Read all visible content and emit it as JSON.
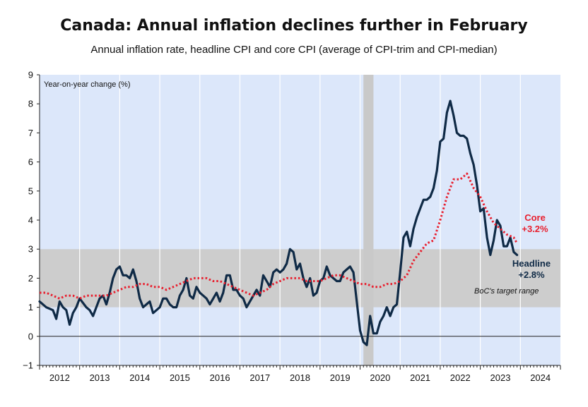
{
  "title": "Canada: Annual inflation declines further in February",
  "subtitle": "Annual inflation rate, headline CPI and core CPI (average of CPI-trim and CPI-median)",
  "chart_data": {
    "type": "line",
    "ylabel": "Year-on-year change (%)",
    "ylim": [
      -1,
      9
    ],
    "yticks": [
      -1,
      0,
      1,
      2,
      3,
      4,
      5,
      6,
      7,
      8,
      9
    ],
    "xlim": [
      "2012-01",
      "2024-12"
    ],
    "xticks": [
      "2012",
      "2013",
      "2014",
      "2015",
      "2016",
      "2017",
      "2018",
      "2019",
      "2020",
      "2021",
      "2022",
      "2023",
      "2024"
    ],
    "target_range": {
      "low": 1,
      "high": 3,
      "label": "BoC's target range"
    },
    "recession_shading": {
      "start": "2020-02",
      "end": "2020-04"
    },
    "series": [
      {
        "name": "Headline",
        "style": "solid",
        "color": "#0f2a46",
        "end_label": "+2.8%",
        "points": [
          [
            "2012-01",
            1.2
          ],
          [
            "2012-03",
            1.0
          ],
          [
            "2012-05",
            0.9
          ],
          [
            "2012-06",
            0.6
          ],
          [
            "2012-07",
            1.2
          ],
          [
            "2012-08",
            1.0
          ],
          [
            "2012-09",
            0.9
          ],
          [
            "2012-10",
            0.4
          ],
          [
            "2012-11",
            0.8
          ],
          [
            "2012-12",
            1.0
          ],
          [
            "2013-01",
            1.3
          ],
          [
            "2013-03",
            1.0
          ],
          [
            "2013-04",
            0.9
          ],
          [
            "2013-05",
            0.7
          ],
          [
            "2013-06",
            1.0
          ],
          [
            "2013-07",
            1.3
          ],
          [
            "2013-08",
            1.4
          ],
          [
            "2013-09",
            1.1
          ],
          [
            "2013-10",
            1.5
          ],
          [
            "2013-11",
            2.0
          ],
          [
            "2013-12",
            2.3
          ],
          [
            "2014-01",
            2.4
          ],
          [
            "2014-02",
            2.1
          ],
          [
            "2014-03",
            2.1
          ],
          [
            "2014-04",
            2.0
          ],
          [
            "2014-05",
            2.3
          ],
          [
            "2014-06",
            1.9
          ],
          [
            "2014-07",
            1.3
          ],
          [
            "2014-08",
            1.0
          ],
          [
            "2014-09",
            1.1
          ],
          [
            "2014-10",
            1.2
          ],
          [
            "2014-11",
            0.8
          ],
          [
            "2014-12",
            0.9
          ],
          [
            "2015-01",
            1.0
          ],
          [
            "2015-02",
            1.3
          ],
          [
            "2015-03",
            1.3
          ],
          [
            "2015-04",
            1.1
          ],
          [
            "2015-05",
            1.0
          ],
          [
            "2015-06",
            1.0
          ],
          [
            "2015-07",
            1.4
          ],
          [
            "2015-08",
            1.6
          ],
          [
            "2015-09",
            2.0
          ],
          [
            "2015-10",
            1.4
          ],
          [
            "2015-11",
            1.3
          ],
          [
            "2015-12",
            1.7
          ],
          [
            "2016-01",
            1.5
          ],
          [
            "2016-02",
            1.4
          ],
          [
            "2016-03",
            1.3
          ],
          [
            "2016-04",
            1.1
          ],
          [
            "2016-05",
            1.3
          ],
          [
            "2016-06",
            1.5
          ],
          [
            "2016-07",
            1.2
          ],
          [
            "2016-08",
            1.5
          ],
          [
            "2016-09",
            2.1
          ],
          [
            "2016-10",
            2.1
          ],
          [
            "2016-11",
            1.6
          ],
          [
            "2016-12",
            1.6
          ],
          [
            "2017-01",
            1.4
          ],
          [
            "2017-02",
            1.3
          ],
          [
            "2017-03",
            1.0
          ],
          [
            "2017-04",
            1.2
          ],
          [
            "2017-05",
            1.4
          ],
          [
            "2017-06",
            1.6
          ],
          [
            "2017-07",
            1.4
          ],
          [
            "2017-08",
            2.1
          ],
          [
            "2017-09",
            1.9
          ],
          [
            "2017-10",
            1.7
          ],
          [
            "2017-11",
            2.2
          ],
          [
            "2017-12",
            2.3
          ],
          [
            "2018-01",
            2.2
          ],
          [
            "2018-02",
            2.3
          ],
          [
            "2018-03",
            2.5
          ],
          [
            "2018-04",
            3.0
          ],
          [
            "2018-05",
            2.9
          ],
          [
            "2018-06",
            2.3
          ],
          [
            "2018-07",
            2.5
          ],
          [
            "2018-08",
            2.0
          ],
          [
            "2018-09",
            1.7
          ],
          [
            "2018-10",
            2.0
          ],
          [
            "2018-11",
            1.4
          ],
          [
            "2018-12",
            1.5
          ],
          [
            "2019-01",
            1.9
          ],
          [
            "2019-02",
            2.0
          ],
          [
            "2019-03",
            2.4
          ],
          [
            "2019-04",
            2.1
          ],
          [
            "2019-05",
            2.0
          ],
          [
            "2019-06",
            1.9
          ],
          [
            "2019-07",
            1.9
          ],
          [
            "2019-08",
            2.2
          ],
          [
            "2019-09",
            2.3
          ],
          [
            "2019-10",
            2.4
          ],
          [
            "2019-11",
            2.2
          ],
          [
            "2019-12",
            1.2
          ],
          [
            "2020-01",
            0.2
          ],
          [
            "2020-02",
            -0.2
          ],
          [
            "2020-03",
            -0.3
          ],
          [
            "2020-04",
            0.7
          ],
          [
            "2020-05",
            0.1
          ],
          [
            "2020-06",
            0.1
          ],
          [
            "2020-07",
            0.5
          ],
          [
            "2020-08",
            0.7
          ],
          [
            "2020-09",
            1.0
          ],
          [
            "2020-10",
            0.7
          ],
          [
            "2020-11",
            1.0
          ],
          [
            "2020-12",
            1.1
          ],
          [
            "2021-01",
            2.2
          ],
          [
            "2021-02",
            3.4
          ],
          [
            "2021-03",
            3.6
          ],
          [
            "2021-04",
            3.1
          ],
          [
            "2021-05",
            3.7
          ],
          [
            "2021-06",
            4.1
          ],
          [
            "2021-07",
            4.4
          ],
          [
            "2021-08",
            4.7
          ],
          [
            "2021-09",
            4.7
          ],
          [
            "2021-10",
            4.8
          ],
          [
            "2021-11",
            5.1
          ],
          [
            "2021-12",
            5.7
          ],
          [
            "2022-01",
            6.7
          ],
          [
            "2022-02",
            6.8
          ],
          [
            "2022-03",
            7.7
          ],
          [
            "2022-04",
            8.1
          ],
          [
            "2022-05",
            7.6
          ],
          [
            "2022-06",
            7.0
          ],
          [
            "2022-07",
            6.9
          ],
          [
            "2022-08",
            6.9
          ],
          [
            "2022-09",
            6.8
          ],
          [
            "2022-10",
            6.3
          ],
          [
            "2022-11",
            5.9
          ],
          [
            "2022-12",
            5.2
          ],
          [
            "2023-01",
            4.3
          ],
          [
            "2023-02",
            4.4
          ],
          [
            "2023-03",
            3.4
          ],
          [
            "2023-04",
            2.8
          ],
          [
            "2023-05",
            3.3
          ],
          [
            "2023-06",
            4.0
          ],
          [
            "2023-07",
            3.8
          ],
          [
            "2023-08",
            3.1
          ],
          [
            "2023-09",
            3.1
          ],
          [
            "2023-10",
            3.4
          ],
          [
            "2023-11",
            2.9
          ],
          [
            "2023-12",
            2.8
          ]
        ]
      },
      {
        "name": "Core",
        "style": "dotted",
        "color": "#e8202f",
        "end_label": "+3.2%",
        "points": [
          [
            "2012-01",
            1.5
          ],
          [
            "2012-03",
            1.5
          ],
          [
            "2012-05",
            1.4
          ],
          [
            "2012-07",
            1.3
          ],
          [
            "2012-09",
            1.4
          ],
          [
            "2012-11",
            1.4
          ],
          [
            "2013-01",
            1.3
          ],
          [
            "2013-03",
            1.4
          ],
          [
            "2013-05",
            1.4
          ],
          [
            "2013-07",
            1.4
          ],
          [
            "2013-09",
            1.4
          ],
          [
            "2013-11",
            1.5
          ],
          [
            "2014-01",
            1.6
          ],
          [
            "2014-03",
            1.7
          ],
          [
            "2014-05",
            1.7
          ],
          [
            "2014-07",
            1.8
          ],
          [
            "2014-09",
            1.8
          ],
          [
            "2014-11",
            1.7
          ],
          [
            "2015-01",
            1.7
          ],
          [
            "2015-03",
            1.6
          ],
          [
            "2015-05",
            1.7
          ],
          [
            "2015-07",
            1.8
          ],
          [
            "2015-09",
            1.9
          ],
          [
            "2015-11",
            2.0
          ],
          [
            "2016-01",
            2.0
          ],
          [
            "2016-03",
            2.0
          ],
          [
            "2016-05",
            1.9
          ],
          [
            "2016-07",
            1.9
          ],
          [
            "2016-09",
            1.8
          ],
          [
            "2016-11",
            1.7
          ],
          [
            "2017-01",
            1.6
          ],
          [
            "2017-03",
            1.5
          ],
          [
            "2017-05",
            1.4
          ],
          [
            "2017-07",
            1.5
          ],
          [
            "2017-09",
            1.6
          ],
          [
            "2017-11",
            1.8
          ],
          [
            "2018-01",
            1.9
          ],
          [
            "2018-03",
            2.0
          ],
          [
            "2018-05",
            2.0
          ],
          [
            "2018-07",
            2.0
          ],
          [
            "2018-09",
            1.9
          ],
          [
            "2018-11",
            1.9
          ],
          [
            "2019-01",
            1.9
          ],
          [
            "2019-03",
            2.0
          ],
          [
            "2019-05",
            2.1
          ],
          [
            "2019-07",
            2.1
          ],
          [
            "2019-09",
            2.0
          ],
          [
            "2019-11",
            1.9
          ],
          [
            "2020-01",
            1.8
          ],
          [
            "2020-03",
            1.8
          ],
          [
            "2020-05",
            1.7
          ],
          [
            "2020-07",
            1.7
          ],
          [
            "2020-09",
            1.8
          ],
          [
            "2020-11",
            1.8
          ],
          [
            "2021-01",
            1.9
          ],
          [
            "2021-03",
            2.1
          ],
          [
            "2021-05",
            2.6
          ],
          [
            "2021-07",
            2.9
          ],
          [
            "2021-09",
            3.2
          ],
          [
            "2021-11",
            3.3
          ],
          [
            "2022-01",
            4.0
          ],
          [
            "2022-03",
            4.8
          ],
          [
            "2022-05",
            5.4
          ],
          [
            "2022-07",
            5.4
          ],
          [
            "2022-09",
            5.6
          ],
          [
            "2022-11",
            5.1
          ],
          [
            "2023-01",
            4.8
          ],
          [
            "2023-03",
            4.3
          ],
          [
            "2023-05",
            3.9
          ],
          [
            "2023-07",
            3.7
          ],
          [
            "2023-09",
            3.5
          ],
          [
            "2023-11",
            3.4
          ],
          [
            "2023-12",
            3.2
          ]
        ]
      }
    ]
  },
  "colors": {
    "plot_background": "#dce7fa",
    "target_band": "#cdcdcd",
    "recession": "#c9c9c9",
    "headline": "#0f2a46",
    "core": "#e8202f"
  }
}
